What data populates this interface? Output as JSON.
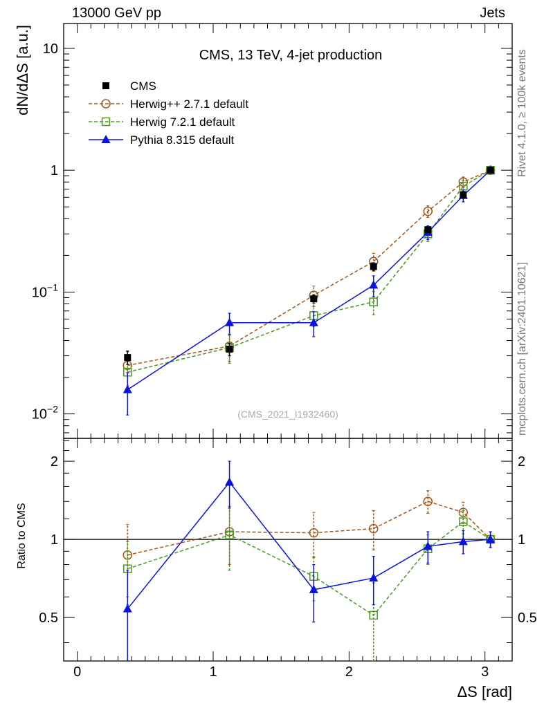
{
  "header": {
    "left": "13000 GeV pp",
    "right": "Jets"
  },
  "side_labels": {
    "rivet": "Rivet 4.1.0, ≥ 100k events",
    "mcplots": "mcplots.cern.ch [arXiv:2401.10621]"
  },
  "chart_data": [
    {
      "type": "line",
      "panel": "main",
      "title": "CMS, 13 TeV, 4-jet production",
      "ylabel": "dN/dΔS [a.u.]",
      "yscale": "log",
      "ylim": [
        0.0063,
        16
      ],
      "xlim": [
        -0.1,
        3.2
      ],
      "yticks": [
        {
          "value": 10,
          "label": "10"
        },
        {
          "value": 1,
          "label": "1"
        },
        {
          "value": 0.1,
          "label": "10",
          "exp": "−1"
        },
        {
          "value": 0.01,
          "label": "10",
          "exp": "−2"
        }
      ],
      "watermark": "(CMS_2021_I1932460)",
      "legend_position": "top-left",
      "series": [
        {
          "name": "CMS",
          "style": "data",
          "color": "#000000",
          "x": [
            0.37,
            1.12,
            1.74,
            2.18,
            2.58,
            2.84,
            3.04
          ],
          "y": [
            0.029,
            0.034,
            0.088,
            0.162,
            0.325,
            0.63,
            1.0
          ],
          "err": [
            0.0035,
            0.004,
            0.007,
            0.012,
            0.018,
            0.04,
            0.05
          ]
        },
        {
          "name": "Herwig++ 2.7.1 default",
          "style": "circle-dashed",
          "color": "#a0561a",
          "x": [
            0.37,
            1.12,
            1.74,
            2.18,
            2.58,
            2.84,
            3.04
          ],
          "y": [
            0.025,
            0.036,
            0.094,
            0.178,
            0.46,
            0.8,
            1.0
          ],
          "err": [
            0.008,
            0.009,
            0.018,
            0.03,
            0.05,
            0.08,
            0.06
          ]
        },
        {
          "name": "Herwig 7.2.1 default",
          "style": "square-dashed",
          "color": "#4a9a1e",
          "x": [
            0.37,
            1.12,
            1.74,
            2.18,
            2.58,
            2.84,
            3.04
          ],
          "y": [
            0.022,
            0.035,
            0.064,
            0.083,
            0.3,
            0.74,
            1.0
          ],
          "err": [
            0.006,
            0.009,
            0.012,
            0.018,
            0.04,
            0.08,
            0.06
          ]
        },
        {
          "name": "Pythia 8.315 default",
          "style": "triangle-solid",
          "color": "#0a12e0",
          "x": [
            0.37,
            1.12,
            1.74,
            2.18,
            2.58,
            2.84,
            3.04
          ],
          "y": [
            0.0158,
            0.056,
            0.056,
            0.114,
            0.31,
            0.62,
            1.0
          ],
          "err": [
            0.006,
            0.011,
            0.013,
            0.022,
            0.04,
            0.07,
            0.06
          ]
        }
      ]
    },
    {
      "type": "line",
      "panel": "ratio",
      "ylabel": "Ratio to CMS",
      "xlabel": "ΔS [rad]",
      "yscale": "log",
      "ylim": [
        0.34,
        2.45
      ],
      "xlim": [
        -0.1,
        3.2
      ],
      "yticks": [
        {
          "value": 2,
          "label": "2"
        },
        {
          "value": 1,
          "label": "1"
        },
        {
          "value": 0.5,
          "label": "0.5"
        }
      ],
      "xticks": [
        {
          "value": 0,
          "label": "0"
        },
        {
          "value": 1,
          "label": "1"
        },
        {
          "value": 2,
          "label": "2"
        },
        {
          "value": 3,
          "label": "3"
        }
      ],
      "reference_line": 1,
      "series": [
        {
          "name": "Herwig++ 2.7.1 default",
          "style": "circle-dashed",
          "color": "#a0561a",
          "x": [
            0.37,
            1.12,
            1.74,
            2.18,
            2.58,
            2.84,
            3.04
          ],
          "y": [
            0.87,
            1.07,
            1.06,
            1.1,
            1.4,
            1.27,
            1.0
          ],
          "err": [
            0.27,
            0.27,
            0.21,
            0.19,
            0.14,
            0.12,
            0.07
          ]
        },
        {
          "name": "Herwig 7.2.1 default",
          "style": "square-dashed",
          "color": "#4a9a1e",
          "x": [
            0.37,
            1.12,
            1.74,
            2.18,
            2.58,
            2.84,
            3.04
          ],
          "y": [
            0.77,
            1.04,
            0.72,
            0.51,
            0.92,
            1.17,
            1.0
          ],
          "err": [
            0.21,
            0.28,
            0.14,
            0.17,
            0.12,
            0.12,
            0.07
          ]
        },
        {
          "name": "Pythia 8.315 default",
          "style": "triangle-solid",
          "color": "#0a12e0",
          "x": [
            0.37,
            1.12,
            1.74,
            2.18,
            2.58,
            2.84,
            3.04
          ],
          "y": [
            0.54,
            1.66,
            0.64,
            0.71,
            0.94,
            0.98,
            1.0
          ],
          "err": [
            0.22,
            0.34,
            0.16,
            0.15,
            0.13,
            0.1,
            0.07
          ]
        }
      ]
    }
  ]
}
